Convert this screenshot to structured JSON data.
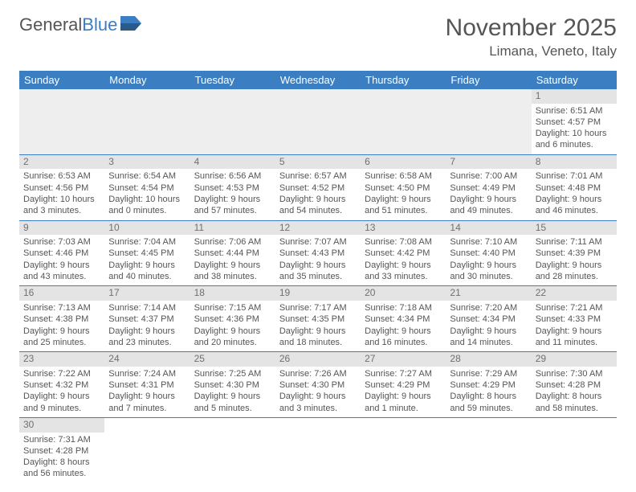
{
  "logo": {
    "text1": "General",
    "text2": "Blue"
  },
  "title": "November 2025",
  "location": "Limana, Veneto, Italy",
  "colors": {
    "header_bg": "#3b7ec2",
    "header_text": "#ffffff",
    "daynum_bg": "#e4e4e4",
    "border": "#3b7ec2",
    "text": "#555555"
  },
  "day_headers": [
    "Sunday",
    "Monday",
    "Tuesday",
    "Wednesday",
    "Thursday",
    "Friday",
    "Saturday"
  ],
  "weeks": [
    [
      null,
      null,
      null,
      null,
      null,
      null,
      {
        "n": "1",
        "sr": "Sunrise: 6:51 AM",
        "ss": "Sunset: 4:57 PM",
        "dl": "Daylight: 10 hours and 6 minutes."
      }
    ],
    [
      {
        "n": "2",
        "sr": "Sunrise: 6:53 AM",
        "ss": "Sunset: 4:56 PM",
        "dl": "Daylight: 10 hours and 3 minutes."
      },
      {
        "n": "3",
        "sr": "Sunrise: 6:54 AM",
        "ss": "Sunset: 4:54 PM",
        "dl": "Daylight: 10 hours and 0 minutes."
      },
      {
        "n": "4",
        "sr": "Sunrise: 6:56 AM",
        "ss": "Sunset: 4:53 PM",
        "dl": "Daylight: 9 hours and 57 minutes."
      },
      {
        "n": "5",
        "sr": "Sunrise: 6:57 AM",
        "ss": "Sunset: 4:52 PM",
        "dl": "Daylight: 9 hours and 54 minutes."
      },
      {
        "n": "6",
        "sr": "Sunrise: 6:58 AM",
        "ss": "Sunset: 4:50 PM",
        "dl": "Daylight: 9 hours and 51 minutes."
      },
      {
        "n": "7",
        "sr": "Sunrise: 7:00 AM",
        "ss": "Sunset: 4:49 PM",
        "dl": "Daylight: 9 hours and 49 minutes."
      },
      {
        "n": "8",
        "sr": "Sunrise: 7:01 AM",
        "ss": "Sunset: 4:48 PM",
        "dl": "Daylight: 9 hours and 46 minutes."
      }
    ],
    [
      {
        "n": "9",
        "sr": "Sunrise: 7:03 AM",
        "ss": "Sunset: 4:46 PM",
        "dl": "Daylight: 9 hours and 43 minutes."
      },
      {
        "n": "10",
        "sr": "Sunrise: 7:04 AM",
        "ss": "Sunset: 4:45 PM",
        "dl": "Daylight: 9 hours and 40 minutes."
      },
      {
        "n": "11",
        "sr": "Sunrise: 7:06 AM",
        "ss": "Sunset: 4:44 PM",
        "dl": "Daylight: 9 hours and 38 minutes."
      },
      {
        "n": "12",
        "sr": "Sunrise: 7:07 AM",
        "ss": "Sunset: 4:43 PM",
        "dl": "Daylight: 9 hours and 35 minutes."
      },
      {
        "n": "13",
        "sr": "Sunrise: 7:08 AM",
        "ss": "Sunset: 4:42 PM",
        "dl": "Daylight: 9 hours and 33 minutes."
      },
      {
        "n": "14",
        "sr": "Sunrise: 7:10 AM",
        "ss": "Sunset: 4:40 PM",
        "dl": "Daylight: 9 hours and 30 minutes."
      },
      {
        "n": "15",
        "sr": "Sunrise: 7:11 AM",
        "ss": "Sunset: 4:39 PM",
        "dl": "Daylight: 9 hours and 28 minutes."
      }
    ],
    [
      {
        "n": "16",
        "sr": "Sunrise: 7:13 AM",
        "ss": "Sunset: 4:38 PM",
        "dl": "Daylight: 9 hours and 25 minutes."
      },
      {
        "n": "17",
        "sr": "Sunrise: 7:14 AM",
        "ss": "Sunset: 4:37 PM",
        "dl": "Daylight: 9 hours and 23 minutes."
      },
      {
        "n": "18",
        "sr": "Sunrise: 7:15 AM",
        "ss": "Sunset: 4:36 PM",
        "dl": "Daylight: 9 hours and 20 minutes."
      },
      {
        "n": "19",
        "sr": "Sunrise: 7:17 AM",
        "ss": "Sunset: 4:35 PM",
        "dl": "Daylight: 9 hours and 18 minutes."
      },
      {
        "n": "20",
        "sr": "Sunrise: 7:18 AM",
        "ss": "Sunset: 4:34 PM",
        "dl": "Daylight: 9 hours and 16 minutes."
      },
      {
        "n": "21",
        "sr": "Sunrise: 7:20 AM",
        "ss": "Sunset: 4:34 PM",
        "dl": "Daylight: 9 hours and 14 minutes."
      },
      {
        "n": "22",
        "sr": "Sunrise: 7:21 AM",
        "ss": "Sunset: 4:33 PM",
        "dl": "Daylight: 9 hours and 11 minutes."
      }
    ],
    [
      {
        "n": "23",
        "sr": "Sunrise: 7:22 AM",
        "ss": "Sunset: 4:32 PM",
        "dl": "Daylight: 9 hours and 9 minutes."
      },
      {
        "n": "24",
        "sr": "Sunrise: 7:24 AM",
        "ss": "Sunset: 4:31 PM",
        "dl": "Daylight: 9 hours and 7 minutes."
      },
      {
        "n": "25",
        "sr": "Sunrise: 7:25 AM",
        "ss": "Sunset: 4:30 PM",
        "dl": "Daylight: 9 hours and 5 minutes."
      },
      {
        "n": "26",
        "sr": "Sunrise: 7:26 AM",
        "ss": "Sunset: 4:30 PM",
        "dl": "Daylight: 9 hours and 3 minutes."
      },
      {
        "n": "27",
        "sr": "Sunrise: 7:27 AM",
        "ss": "Sunset: 4:29 PM",
        "dl": "Daylight: 9 hours and 1 minute."
      },
      {
        "n": "28",
        "sr": "Sunrise: 7:29 AM",
        "ss": "Sunset: 4:29 PM",
        "dl": "Daylight: 8 hours and 59 minutes."
      },
      {
        "n": "29",
        "sr": "Sunrise: 7:30 AM",
        "ss": "Sunset: 4:28 PM",
        "dl": "Daylight: 8 hours and 58 minutes."
      }
    ],
    [
      {
        "n": "30",
        "sr": "Sunrise: 7:31 AM",
        "ss": "Sunset: 4:28 PM",
        "dl": "Daylight: 8 hours and 56 minutes."
      },
      null,
      null,
      null,
      null,
      null,
      null
    ]
  ]
}
